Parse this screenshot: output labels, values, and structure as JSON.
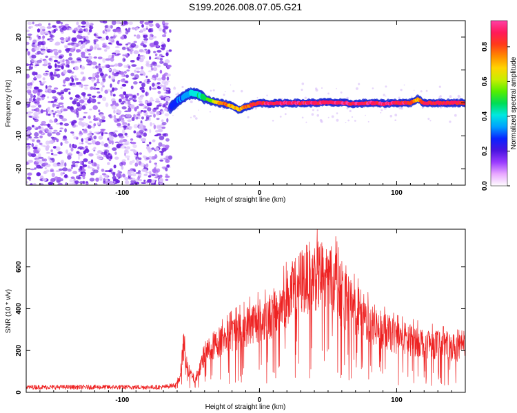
{
  "title": "S199.2026.008.07.05.G21",
  "colors": {
    "snr_line": "#ee2222",
    "noise_dots": "#7a2ee8",
    "colorbar": [
      "#ffffff",
      "#e9a8ff",
      "#9a3cff",
      "#4a14e0",
      "#0a22ff",
      "#00a0ff",
      "#00e8e0",
      "#00dd55",
      "#55ee00",
      "#c8ee00",
      "#ffd400",
      "#ff8a00",
      "#ff3a1a",
      "#ff1a5a",
      "#ff3fa5"
    ]
  },
  "chart_data": [
    {
      "type": "heatmap",
      "name": "spectrogram",
      "xlabel": "Height of straight line (km)",
      "ylabel": "Frequency (Hz)",
      "xlim": [
        -170,
        150
      ],
      "ylim": [
        -25,
        25
      ],
      "xticks": [
        -100,
        0,
        100
      ],
      "xtick_labels": [
        "-100",
        "0",
        "100"
      ],
      "yticks": [
        -20,
        -10,
        0,
        10,
        20
      ],
      "ytick_labels": [
        "-20",
        "-10",
        "0",
        "10",
        "20"
      ],
      "colorbar": {
        "label": "Normalized spectral amplitude",
        "range": [
          0,
          0.95
        ],
        "ticks": [
          0.0,
          0.2,
          0.4,
          0.6,
          0.8
        ],
        "tick_labels": [
          "0.0",
          "0.2",
          "0.4",
          "0.6",
          "0.8"
        ]
      },
      "noise_region_x": [
        -170,
        -65
      ],
      "signal_track": {
        "x": [
          -65,
          -60,
          -55,
          -50,
          -45,
          -40,
          -35,
          -30,
          -25,
          -20,
          -15,
          -10,
          -5,
          0,
          10,
          20,
          30,
          40,
          50,
          60,
          70,
          80,
          90,
          100,
          110,
          115,
          120,
          130,
          140,
          150
        ],
        "y": [
          -1.5,
          0.5,
          2.0,
          3.0,
          2.5,
          1.5,
          0.5,
          0.0,
          -0.3,
          -1.0,
          -2.0,
          -1.2,
          -0.5,
          0.0,
          -0.2,
          0.0,
          -0.1,
          0.0,
          0.2,
          0.0,
          -0.3,
          0.0,
          -0.2,
          0.0,
          0.0,
          1.2,
          0.0,
          0.0,
          0.0,
          0.0
        ],
        "amplitude": [
          0.25,
          0.3,
          0.35,
          0.4,
          0.45,
          0.5,
          0.6,
          0.75,
          0.8,
          0.75,
          0.7,
          0.78,
          0.85,
          0.9,
          0.92,
          0.92,
          0.93,
          0.93,
          0.94,
          0.94,
          0.93,
          0.93,
          0.93,
          0.93,
          0.9,
          0.7,
          0.9,
          0.9,
          0.9,
          0.9
        ]
      }
    },
    {
      "type": "line",
      "name": "snr",
      "xlabel": "Height of straight line (km)",
      "ylabel": "SNR (10 * v/v)",
      "xlim": [
        -170,
        150
      ],
      "ylim": [
        0,
        780
      ],
      "xticks": [
        -100,
        0,
        100
      ],
      "xtick_labels": [
        "-100",
        "0",
        "100"
      ],
      "yticks": [
        0,
        200,
        400,
        600
      ],
      "ytick_labels": [
        "0",
        "200",
        "400",
        "600"
      ],
      "envelope": {
        "x": [
          -170,
          -70,
          -62,
          -58,
          -55,
          -53,
          -50,
          -47,
          -43,
          -40,
          -35,
          -30,
          -25,
          -20,
          -10,
          -5,
          0,
          5,
          10,
          20,
          30,
          40,
          50,
          55,
          60,
          70,
          80,
          90,
          100,
          120,
          150
        ],
        "y": [
          25,
          25,
          35,
          80,
          300,
          150,
          110,
          70,
          160,
          230,
          270,
          300,
          320,
          350,
          390,
          420,
          430,
          440,
          470,
          560,
          660,
          700,
          690,
          680,
          560,
          500,
          420,
          370,
          330,
          300,
          260
        ]
      }
    }
  ]
}
